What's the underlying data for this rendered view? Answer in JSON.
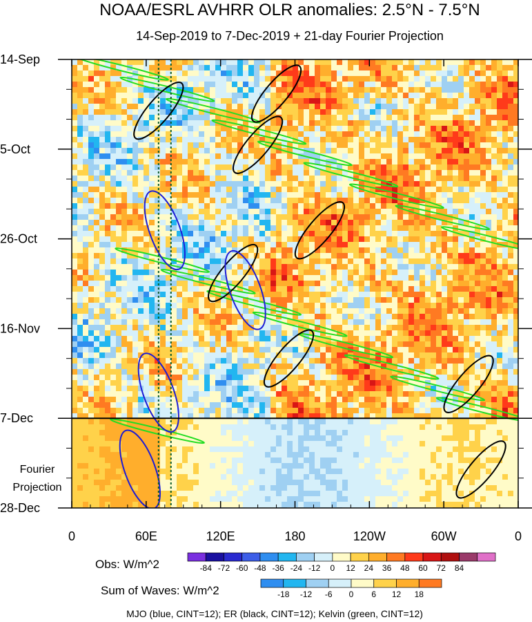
{
  "chart_data": {
    "type": "heatmap",
    "title": "NOAA/ESRL AVHRR OLR anomalies: 2.5°N - 7.5°N",
    "subtitle": "14-Sep-2019 to 7-Dec-2019 + 21-day Fourier Projection",
    "x_tick_labels": [
      "0",
      "60E",
      "120E",
      "180",
      "120W",
      "60W",
      "0"
    ],
    "x_tick_values_deg": [
      0,
      60,
      120,
      180,
      240,
      300,
      360
    ],
    "xlim_deg": [
      0,
      360
    ],
    "y_tick_labels": [
      "14-Sep",
      "5-Oct",
      "26-Oct",
      "16-Nov",
      "7-Dec",
      "28-Dec"
    ],
    "y_tick_days": [
      0,
      21,
      42,
      63,
      84,
      105
    ],
    "ylim_days": [
      0,
      105
    ],
    "projection_label": [
      "Fourier",
      "Projection"
    ],
    "projection_start_day": 84,
    "reference_lines_deg": [
      70,
      80
    ],
    "obs_colorbar": {
      "label": "Obs: W/m^2",
      "tick_labels": [
        "-84",
        "-72",
        "-60",
        "-48",
        "-36",
        "-24",
        "-12",
        "0",
        "12",
        "24",
        "36",
        "48",
        "60",
        "72",
        "84"
      ],
      "colors": [
        "#7a2fe0",
        "#1a10a0",
        "#2a2ad0",
        "#3d5ee8",
        "#2f8ef0",
        "#22b6f0",
        "#9fd0f2",
        "#d6f0fa",
        "#fffbc8",
        "#ffd24a",
        "#ffae2c",
        "#ff7a22",
        "#ff3a1a",
        "#d81616",
        "#b01010",
        "#9a3a6a",
        "#e070c8"
      ]
    },
    "waves_colorbar": {
      "label": "Sum of Waves: W/m^2",
      "tick_labels": [
        "-18",
        "-12",
        "-6",
        "0",
        "6",
        "12",
        "18"
      ],
      "colors": [
        "#2f8ef0",
        "#22b6f0",
        "#9fd0f2",
        "#d6f0fa",
        "#fffbc8",
        "#ffd24a",
        "#ffae2c",
        "#ff7a22"
      ]
    },
    "contour_series": [
      {
        "name": "MJO",
        "color": "#1c1cd6"
      },
      {
        "name": "ER",
        "color": "#000000"
      },
      {
        "name": "Kelvin",
        "color": "#22dd22"
      }
    ],
    "note": "MJO (blue, CINT=12); ER (black, CINT=12); Kelvin (green, CINT=12)"
  }
}
